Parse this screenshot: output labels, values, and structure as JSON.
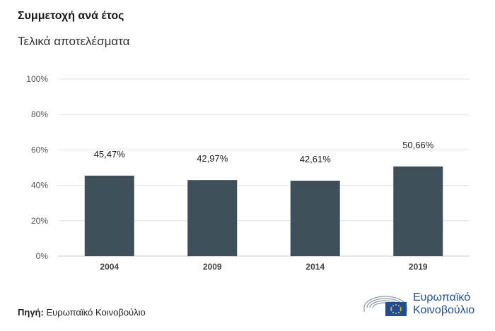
{
  "header": {
    "title": "Συμμετοχή ανά έτος",
    "subtitle": "Τελικά αποτελέσματα"
  },
  "footer": {
    "source_label": "Πηγή:",
    "source_value": "Ευρωπαϊκό Κοινοβούλιο",
    "logo_line1": "Ευρωπαϊκό",
    "logo_line2": "Κοινοβούλιο"
  },
  "colors": {
    "bar": "#3f4f5a",
    "grid": "#e3e3e3",
    "axis_text": "#555555",
    "logo_blue": "#1f4e96",
    "flag_star": "#ffcc00"
  },
  "chart_data": {
    "type": "bar",
    "title": "Συμμετοχή ανά έτος",
    "subtitle": "Τελικά αποτελέσματα",
    "categories": [
      "2004",
      "2009",
      "2014",
      "2019"
    ],
    "values": [
      45.47,
      42.97,
      42.61,
      50.66
    ],
    "value_labels": [
      "45,47%",
      "42,97%",
      "42,61%",
      "50,66%"
    ],
    "ylim": [
      0,
      100
    ],
    "yticks": [
      0,
      20,
      40,
      60,
      80,
      100
    ],
    "ytick_labels": [
      "0%",
      "20%",
      "40%",
      "60%",
      "80%",
      "100%"
    ],
    "xlabel": "",
    "ylabel": "",
    "grid": true
  }
}
